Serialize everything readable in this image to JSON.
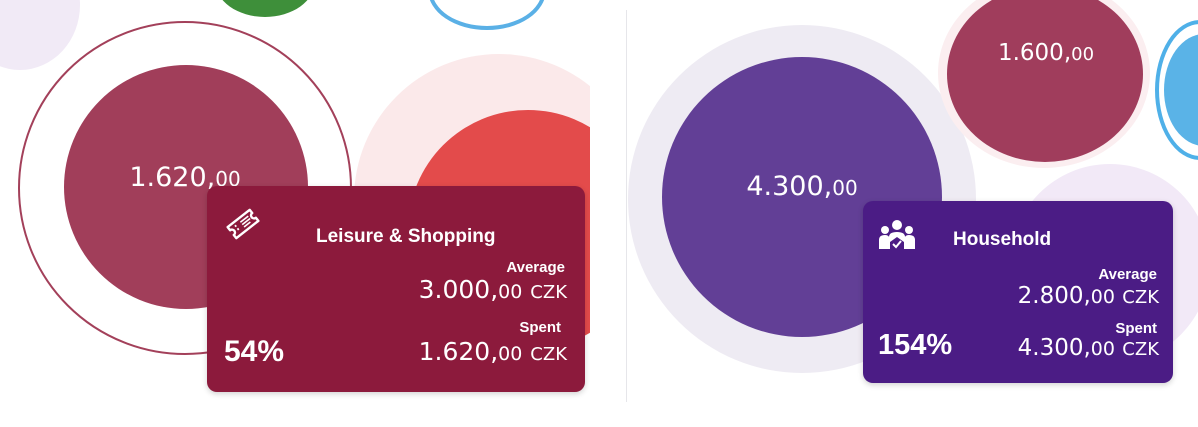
{
  "left": {
    "bubble": {
      "int": "1.620,",
      "dec": "00"
    },
    "card": {
      "icon": "ticket-icon",
      "title": "Leisure & Shopping",
      "average_label": "Average",
      "average_int": "3.000,",
      "average_dec": "00",
      "spent_label": "Spent",
      "spent_int": "1.620,",
      "spent_dec": "00",
      "currency": "CZK",
      "percent": "54%",
      "color": "#8c1a3c"
    }
  },
  "right": {
    "bubble_main": {
      "int": "4.300,",
      "dec": "00"
    },
    "bubble_top": {
      "int": "1.600,",
      "dec": "00"
    },
    "card": {
      "icon": "household-icon",
      "title": "Household",
      "average_label": "Average",
      "average_int": "2.800,",
      "average_dec": "00",
      "spent_label": "Spent",
      "spent_int": "4.300,",
      "spent_dec": "00",
      "currency": "CZK",
      "percent": "154%",
      "color": "#4b1c85"
    }
  }
}
